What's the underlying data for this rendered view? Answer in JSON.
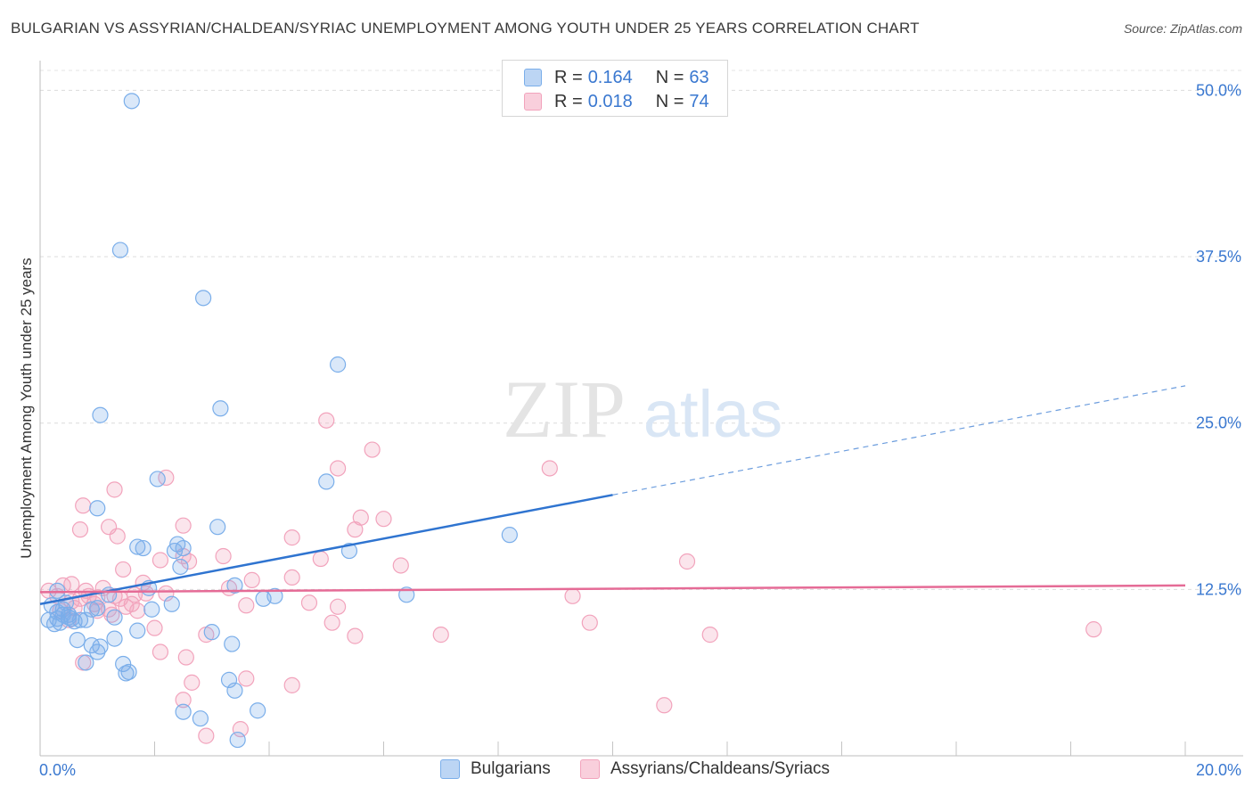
{
  "title": "BULGARIAN VS ASSYRIAN/CHALDEAN/SYRIAC UNEMPLOYMENT AMONG YOUTH UNDER 25 YEARS CORRELATION CHART",
  "source": "Source: ZipAtlas.com",
  "watermark": {
    "zip": "ZIP",
    "atlas": "atlas"
  },
  "legend": {
    "r_label": "R =",
    "n_label": "N =",
    "bulgarians": {
      "r": "0.164",
      "n": "63"
    },
    "assyrians": {
      "r": "0.018",
      "n": "74"
    }
  },
  "chart_data": {
    "type": "scatter",
    "title": "BULGARIAN VS ASSYRIAN/CHALDEAN/SYRIAC UNEMPLOYMENT AMONG YOUTH UNDER 25 YEARS CORRELATION CHART",
    "xlabel": "",
    "ylabel": "Unemployment Among Youth under 25 years",
    "xlim": [
      0,
      20
    ],
    "ylim": [
      0,
      51.5
    ],
    "x_tick_labels": [
      "0.0%",
      "20.0%"
    ],
    "y_ticks": [
      12.5,
      25.0,
      37.5,
      50.0
    ],
    "y_tick_labels": [
      "12.5%",
      "25.0%",
      "37.5%",
      "50.0%"
    ],
    "grid": true,
    "series": [
      {
        "name": "Bulgarians",
        "color": "#7aaeea",
        "line_color": "#2f74d0",
        "trend": {
          "x0": 0.0,
          "y0": 11.4,
          "x1": 10.0,
          "y1": 19.6,
          "dash_to_x": 20.0,
          "dash_to_y": 27.8
        },
        "points": [
          [
            1.6,
            49.2
          ],
          [
            1.4,
            38.0
          ],
          [
            2.85,
            34.4
          ],
          [
            5.2,
            29.4
          ],
          [
            1.05,
            25.6
          ],
          [
            3.15,
            26.1
          ],
          [
            2.05,
            20.8
          ],
          [
            5.0,
            20.6
          ],
          [
            1.0,
            18.6
          ],
          [
            3.1,
            17.2
          ],
          [
            8.2,
            16.6
          ],
          [
            1.7,
            15.7
          ],
          [
            1.8,
            15.6
          ],
          [
            2.35,
            15.4
          ],
          [
            2.4,
            15.9
          ],
          [
            2.5,
            15.6
          ],
          [
            5.4,
            15.4
          ],
          [
            2.45,
            14.2
          ],
          [
            1.9,
            12.6
          ],
          [
            3.4,
            12.8
          ],
          [
            3.9,
            11.8
          ],
          [
            4.1,
            12.0
          ],
          [
            1.2,
            12.1
          ],
          [
            2.3,
            11.4
          ],
          [
            1.95,
            11.0
          ],
          [
            6.4,
            12.1
          ],
          [
            0.3,
            12.4
          ],
          [
            0.4,
            11.0
          ],
          [
            0.5,
            10.4
          ],
          [
            0.2,
            11.3
          ],
          [
            0.15,
            10.2
          ],
          [
            0.6,
            10.1
          ],
          [
            0.7,
            10.2
          ],
          [
            0.9,
            11.0
          ],
          [
            0.35,
            10.0
          ],
          [
            1.0,
            11.1
          ],
          [
            0.4,
            10.6
          ],
          [
            0.3,
            10.3
          ],
          [
            0.25,
            9.9
          ],
          [
            0.5,
            10.6
          ],
          [
            1.3,
            10.4
          ],
          [
            0.55,
            10.3
          ],
          [
            0.8,
            10.2
          ],
          [
            1.7,
            9.4
          ],
          [
            3.0,
            9.3
          ],
          [
            3.35,
            8.4
          ],
          [
            1.3,
            8.8
          ],
          [
            0.65,
            8.7
          ],
          [
            0.9,
            8.3
          ],
          [
            1.05,
            8.2
          ],
          [
            1.0,
            7.8
          ],
          [
            0.8,
            7.0
          ],
          [
            1.45,
            6.9
          ],
          [
            1.55,
            6.3
          ],
          [
            1.5,
            6.2
          ],
          [
            3.3,
            5.7
          ],
          [
            3.4,
            4.9
          ],
          [
            2.5,
            3.3
          ],
          [
            2.8,
            2.8
          ],
          [
            3.8,
            3.4
          ],
          [
            3.45,
            1.2
          ],
          [
            0.3,
            10.8
          ],
          [
            0.45,
            11.5
          ]
        ]
      },
      {
        "name": "Assyrians/Chaldeans/Syriacs",
        "color": "#f2a3bc",
        "line_color": "#e56b96",
        "trend": {
          "x0": 0.0,
          "y0": 12.3,
          "x1": 20.0,
          "y1": 12.8
        },
        "points": [
          [
            0.15,
            12.4
          ],
          [
            0.3,
            12.0
          ],
          [
            0.4,
            12.8
          ],
          [
            0.55,
            11.6
          ],
          [
            0.6,
            11.1
          ],
          [
            0.7,
            11.8
          ],
          [
            0.8,
            12.4
          ],
          [
            0.95,
            11.4
          ],
          [
            1.0,
            11.9
          ],
          [
            1.1,
            12.6
          ],
          [
            1.2,
            11.0
          ],
          [
            1.25,
            10.6
          ],
          [
            1.3,
            12.0
          ],
          [
            1.4,
            11.8
          ],
          [
            1.5,
            11.2
          ],
          [
            1.6,
            11.4
          ],
          [
            1.7,
            10.9
          ],
          [
            1.8,
            13.0
          ],
          [
            1.85,
            12.2
          ],
          [
            2.1,
            14.7
          ],
          [
            2.2,
            12.2
          ],
          [
            0.7,
            17.0
          ],
          [
            1.2,
            17.2
          ],
          [
            0.75,
            18.8
          ],
          [
            1.3,
            20.0
          ],
          [
            2.2,
            20.9
          ],
          [
            2.5,
            17.3
          ],
          [
            2.6,
            14.6
          ],
          [
            3.2,
            15.0
          ],
          [
            3.3,
            12.6
          ],
          [
            3.6,
            11.3
          ],
          [
            3.7,
            13.2
          ],
          [
            4.4,
            16.4
          ],
          [
            4.4,
            13.4
          ],
          [
            4.9,
            14.8
          ],
          [
            5.0,
            25.2
          ],
          [
            5.2,
            21.6
          ],
          [
            5.5,
            17.0
          ],
          [
            5.6,
            17.9
          ],
          [
            5.8,
            23.0
          ],
          [
            6.0,
            17.8
          ],
          [
            5.2,
            11.2
          ],
          [
            5.1,
            10.0
          ],
          [
            5.5,
            9.0
          ],
          [
            6.3,
            14.3
          ],
          [
            8.9,
            21.6
          ],
          [
            9.3,
            12.0
          ],
          [
            9.6,
            10.0
          ],
          [
            11.3,
            14.6
          ],
          [
            11.7,
            9.1
          ],
          [
            18.4,
            9.5
          ],
          [
            7.0,
            9.1
          ],
          [
            2.0,
            9.6
          ],
          [
            2.1,
            7.8
          ],
          [
            2.55,
            7.4
          ],
          [
            2.65,
            5.5
          ],
          [
            2.5,
            4.2
          ],
          [
            2.9,
            9.1
          ],
          [
            3.6,
            5.8
          ],
          [
            4.4,
            5.3
          ],
          [
            3.5,
            2.0
          ],
          [
            2.9,
            1.5
          ],
          [
            0.75,
            7.0
          ],
          [
            1.35,
            16.5
          ],
          [
            2.5,
            15.0
          ],
          [
            0.55,
            12.9
          ],
          [
            1.0,
            10.9
          ],
          [
            0.35,
            10.9
          ],
          [
            0.85,
            12.0
          ],
          [
            0.5,
            10.2
          ],
          [
            1.65,
            12.1
          ],
          [
            4.7,
            11.5
          ],
          [
            10.9,
            3.8
          ],
          [
            1.45,
            14.0
          ]
        ]
      }
    ]
  },
  "bottom_legend": {
    "bulgarians": "Bulgarians",
    "assyrians": "Assyrians/Chaldeans/Syriacs"
  }
}
